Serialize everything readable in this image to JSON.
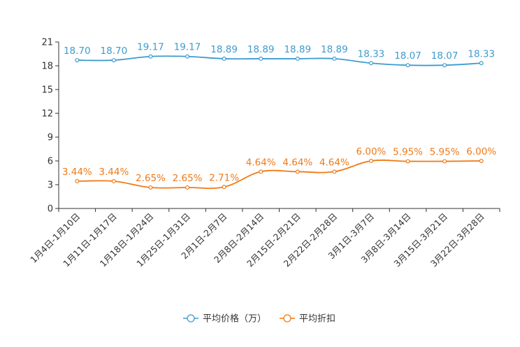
{
  "chart_data": {
    "type": "line",
    "title": "",
    "xlabel": "",
    "ylabel": "",
    "ylim": [
      0,
      21
    ],
    "yticks": [
      0,
      3,
      6,
      9,
      12,
      15,
      18,
      21
    ],
    "grid": false,
    "legend_position": "bottom",
    "categories": [
      "1月4日-1月10日",
      "1月11日-1月17日",
      "1月18日-1月24日",
      "1月25日-1月31日",
      "2月1日-2月7日",
      "2月8日-2月14日",
      "2月15日-2月21日",
      "2月22日-2月28日",
      "3月1日-3月7日",
      "3月8日-3月14日",
      "3月15日-3月21日",
      "3月22日-3月28日"
    ],
    "series": [
      {
        "name": "平均价格（万）",
        "color": "#3d9bd0",
        "values": [
          18.7,
          18.7,
          19.17,
          19.17,
          18.89,
          18.89,
          18.89,
          18.89,
          18.33,
          18.07,
          18.07,
          18.33
        ],
        "labels": [
          "18.70",
          "18.70",
          "19.17",
          "19.17",
          "18.89",
          "18.89",
          "18.89",
          "18.89",
          "18.33",
          "18.07",
          "18.07",
          "18.33"
        ]
      },
      {
        "name": "平均折扣",
        "color": "#ef7a18",
        "values": [
          3.44,
          3.44,
          2.65,
          2.65,
          2.71,
          4.64,
          4.64,
          4.64,
          6.0,
          5.95,
          5.95,
          6.0
        ],
        "labels": [
          "3.44%",
          "3.44%",
          "2.65%",
          "2.65%",
          "2.71%",
          "4.64%",
          "4.64%",
          "4.64%",
          "6.00%",
          "5.95%",
          "5.95%",
          "6.00%"
        ]
      }
    ]
  }
}
